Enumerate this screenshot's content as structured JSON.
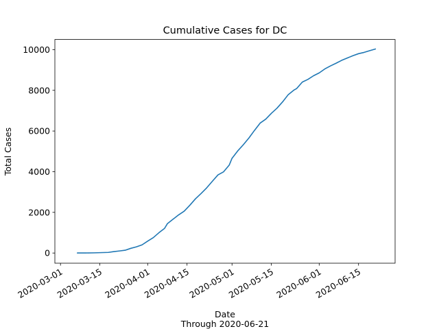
{
  "chart_data": {
    "type": "line",
    "title": "Cumulative Cases for DC",
    "xlabel": "Date",
    "xlabel_sub": "Through 2020-06-21",
    "ylabel": "Total Cases",
    "xlim": [
      "2020-02-28",
      "2020-06-28"
    ],
    "ylim": [
      -500,
      10500
    ],
    "grid": false,
    "legend": "none",
    "x_ticks": [
      "2020-03-01",
      "2020-03-15",
      "2020-04-01",
      "2020-04-15",
      "2020-05-01",
      "2020-05-15",
      "2020-06-01",
      "2020-06-15"
    ],
    "y_ticks": [
      0,
      2000,
      4000,
      6000,
      8000,
      10000
    ],
    "series": [
      {
        "color": "#1f77b4",
        "points": [
          [
            "2020-03-07",
            2
          ],
          [
            "2020-03-10",
            4
          ],
          [
            "2020-03-13",
            10
          ],
          [
            "2020-03-16",
            22
          ],
          [
            "2020-03-18",
            31
          ],
          [
            "2020-03-20",
            71
          ],
          [
            "2020-03-22",
            102
          ],
          [
            "2020-03-24",
            137
          ],
          [
            "2020-03-26",
            231
          ],
          [
            "2020-03-28",
            304
          ],
          [
            "2020-03-30",
            401
          ],
          [
            "2020-04-01",
            586
          ],
          [
            "2020-04-03",
            757
          ],
          [
            "2020-04-05",
            998
          ],
          [
            "2020-04-07",
            1211
          ],
          [
            "2020-04-08",
            1440
          ],
          [
            "2020-04-10",
            1660
          ],
          [
            "2020-04-12",
            1875
          ],
          [
            "2020-04-14",
            2058
          ],
          [
            "2020-04-16",
            2350
          ],
          [
            "2020-04-18",
            2666
          ],
          [
            "2020-04-20",
            2927
          ],
          [
            "2020-04-22",
            3206
          ],
          [
            "2020-04-24",
            3528
          ],
          [
            "2020-04-26",
            3841
          ],
          [
            "2020-04-28",
            3994
          ],
          [
            "2020-04-30",
            4323
          ],
          [
            "2020-05-01",
            4658
          ],
          [
            "2020-05-03",
            5016
          ],
          [
            "2020-05-05",
            5322
          ],
          [
            "2020-05-07",
            5654
          ],
          [
            "2020-05-09",
            6031
          ],
          [
            "2020-05-11",
            6389
          ],
          [
            "2020-05-13",
            6584
          ],
          [
            "2020-05-15",
            6871
          ],
          [
            "2020-05-17",
            7123
          ],
          [
            "2020-05-19",
            7434
          ],
          [
            "2020-05-21",
            7788
          ],
          [
            "2020-05-23",
            8011
          ],
          [
            "2020-05-24",
            8089
          ],
          [
            "2020-05-26",
            8406
          ],
          [
            "2020-05-28",
            8538
          ],
          [
            "2020-05-30",
            8717
          ],
          [
            "2020-06-01",
            8857
          ],
          [
            "2020-06-03",
            9051
          ],
          [
            "2020-06-05",
            9199
          ],
          [
            "2020-06-07",
            9332
          ],
          [
            "2020-06-09",
            9474
          ],
          [
            "2020-06-11",
            9589
          ],
          [
            "2020-06-13",
            9703
          ],
          [
            "2020-06-15",
            9802
          ],
          [
            "2020-06-17",
            9866
          ],
          [
            "2020-06-19",
            9952
          ],
          [
            "2020-06-21",
            10032
          ]
        ]
      }
    ]
  }
}
